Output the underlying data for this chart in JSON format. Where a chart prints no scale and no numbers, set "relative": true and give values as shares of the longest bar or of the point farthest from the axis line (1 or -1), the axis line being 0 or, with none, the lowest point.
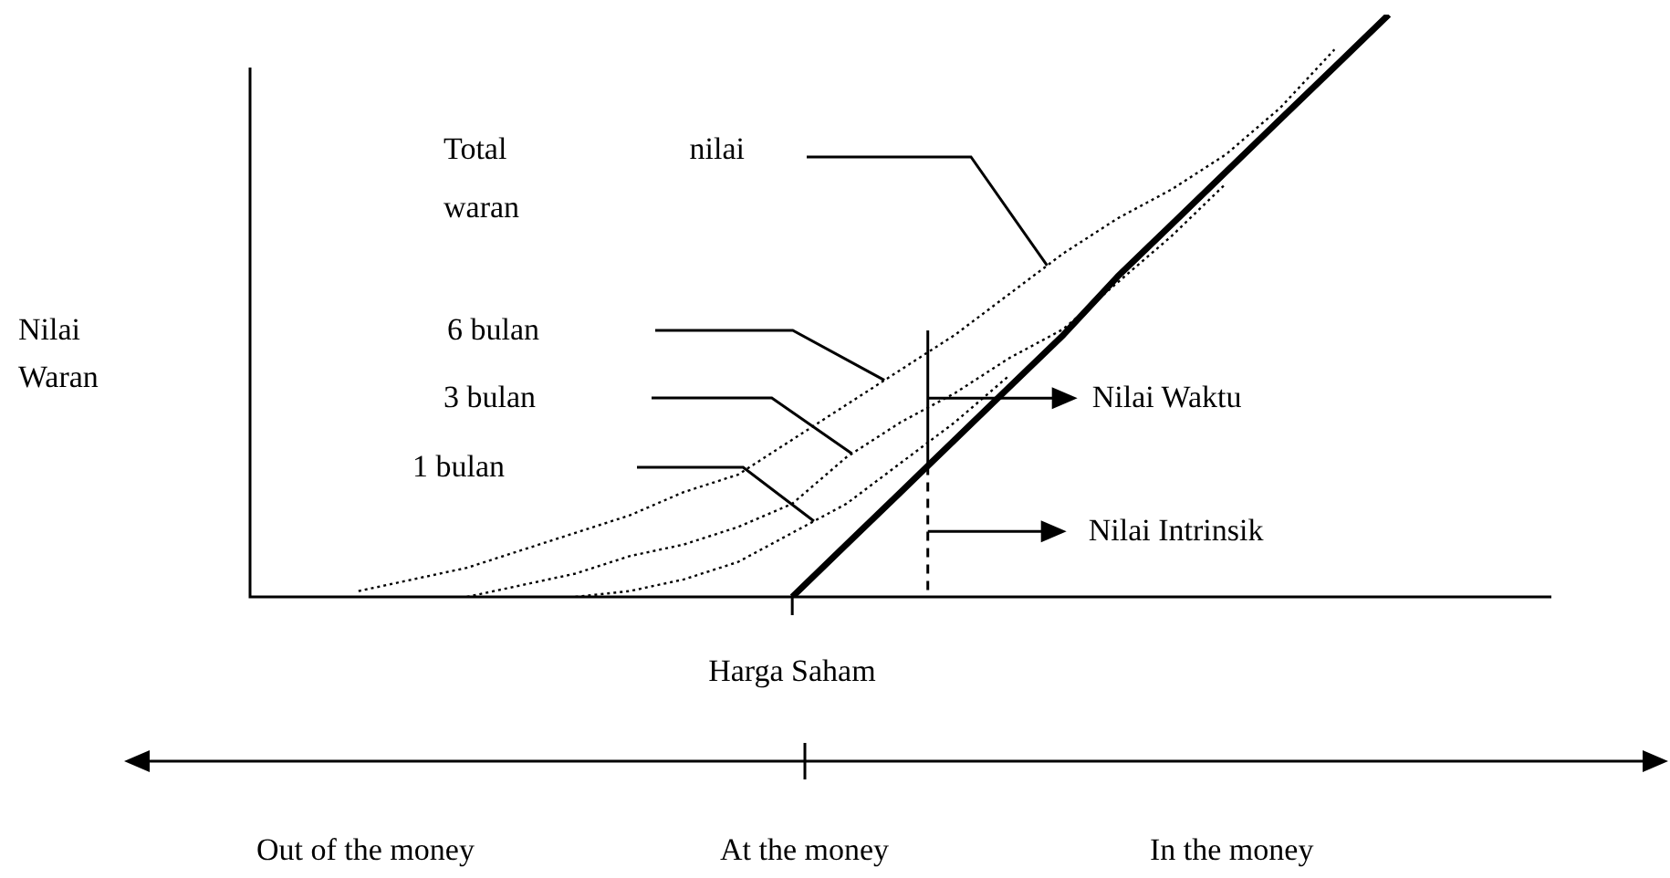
{
  "chart_data": {
    "type": "line",
    "relative": true,
    "ylabel": "Nilai Waran",
    "xlabel": "Harga Saham",
    "legend": false,
    "marker": "none",
    "categories": [
      null,
      null,
      null,
      null,
      null,
      null,
      null,
      null,
      null,
      null,
      null,
      null,
      null,
      null,
      null,
      null,
      null,
      null,
      null,
      null,
      null,
      null,
      null,
      null,
      null
    ],
    "series": [
      {
        "color": "#000000",
        "line_style": "dotted",
        "values": [
          null,
          null,
          0.01,
          0.03,
          0.05,
          0.08,
          0.11,
          0.14,
          0.18,
          0.21,
          0.27,
          0.33,
          0.39,
          0.45,
          0.52,
          0.59,
          0.65,
          0.7,
          0.76,
          0.84,
          0.94,
          null,
          null,
          null,
          null
        ]
      },
      {
        "color": "#000000",
        "line_style": "dotted",
        "values": [
          null,
          null,
          null,
          null,
          0,
          0.02,
          0.04,
          0.07,
          0.09,
          0.12,
          0.16,
          0.24,
          0.3,
          0.35,
          0.41,
          0.46,
          0.54,
          0.62,
          0.71,
          null,
          null,
          null,
          null,
          null,
          null
        ]
      },
      {
        "color": "#000000",
        "line_style": "dotted",
        "values": [
          null,
          null,
          null,
          null,
          null,
          null,
          0,
          0.01,
          0.03,
          0.06,
          0.11,
          0.16,
          0.23,
          0.3,
          0.38,
          null,
          null,
          null,
          null,
          null,
          null,
          null,
          null,
          null,
          null
        ]
      },
      {
        "color": "#000000",
        "line_style": "solid",
        "values": [
          null,
          null,
          null,
          null,
          null,
          null,
          null,
          null,
          null,
          null,
          0,
          0.09,
          0.18,
          0.27,
          0.36,
          0.45,
          0.55,
          0.64,
          0.73,
          0.82,
          0.91,
          1,
          null,
          null,
          null
        ]
      }
    ],
    "annotations": [
      "Total nilai waran",
      "Nilai Waktu",
      "Nilai Intrinsik",
      "Out of the money",
      "At the money",
      "In the money",
      "6 bulan",
      "3 bulan",
      "1 bulan"
    ]
  }
}
